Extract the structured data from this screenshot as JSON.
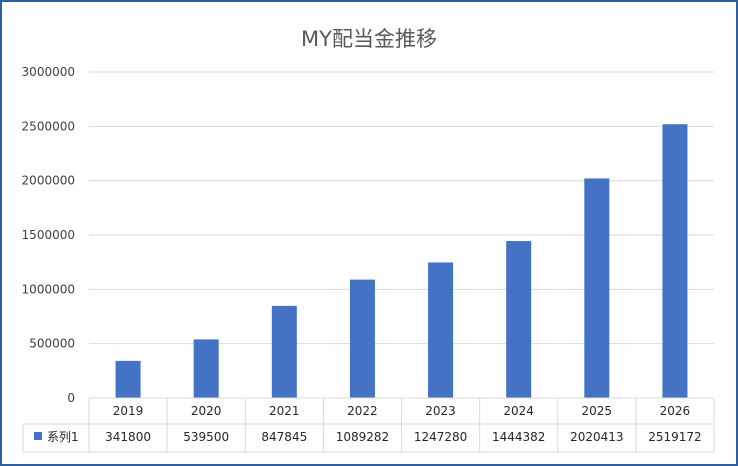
{
  "chart_data": {
    "type": "bar",
    "title": "MY配当金推移",
    "categories": [
      "2019",
      "2020",
      "2021",
      "2022",
      "2023",
      "2024",
      "2025",
      "2026"
    ],
    "series": [
      {
        "name": "系列1",
        "color": "#4472c4",
        "values": [
          341800,
          539500,
          847845,
          1089282,
          1247280,
          1444382,
          2020413,
          2519172
        ]
      }
    ],
    "ylim": [
      0,
      3000000
    ],
    "yticks": [
      "0",
      "500000",
      "1000000",
      "1500000",
      "2000000",
      "2500000",
      "3000000"
    ],
    "grid": true,
    "data_table": true,
    "legend": "data-table"
  },
  "colors": {
    "frame_border": "#2e5f9e",
    "gridline": "#d9d9d9",
    "bar": "#4472c4"
  }
}
